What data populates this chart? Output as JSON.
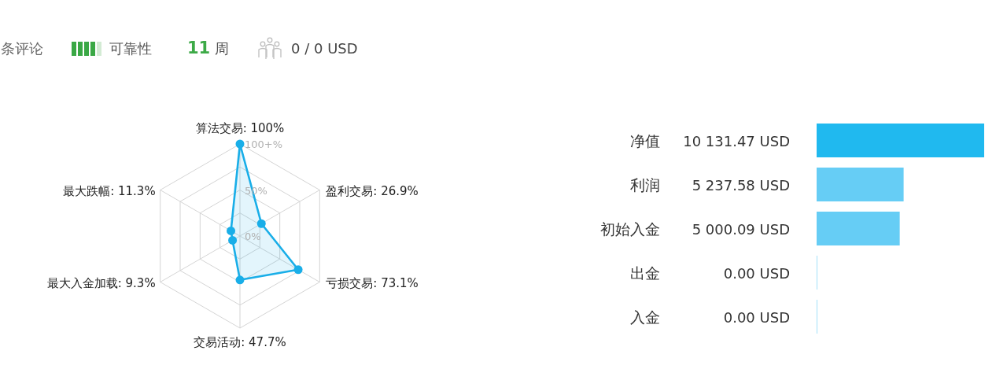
{
  "chart_data": [
    {
      "type": "other",
      "annotations": [
        "条评论",
        "可靠性",
        "11",
        "周",
        "0 / 0 USD"
      ]
    },
    {
      "type": "radar",
      "categories": [
        "算法交易: 100%",
        "盈利交易: 26.9%",
        "亏损交易: 73.1%",
        "交易活动: 47.7%",
        "最大入金加载: 9.3%",
        "最大跌幅: 11.3%"
      ],
      "series": [
        {
          "color": "#19aee8",
          "values": [
            100,
            26.9,
            73.1,
            47.7,
            9.3,
            11.3
          ]
        }
      ],
      "ylim": [
        0,
        100
      ],
      "yticks": [
        {
          "value": 0,
          "label": "0%"
        },
        {
          "value": 50,
          "label": "50%"
        },
        {
          "value": 100,
          "label": "100+%"
        }
      ],
      "grid": true,
      "marker": "circle"
    },
    {
      "type": "bar",
      "orientation": "horizontal",
      "categories": [
        "净值",
        "利润",
        "初始入金",
        "出金",
        "入金"
      ],
      "values": [
        10131.47,
        5237.58,
        5000.09,
        0,
        0
      ],
      "value_labels": [
        "10 131.47 USD",
        "5 237.58 USD",
        "5 000.09 USD",
        "0.00 USD",
        "0.00 USD"
      ],
      "colors": [
        "#20b9ef",
        "#66cdf5",
        "#66cdf5",
        "#66cdf5",
        "#66cdf5"
      ]
    }
  ]
}
